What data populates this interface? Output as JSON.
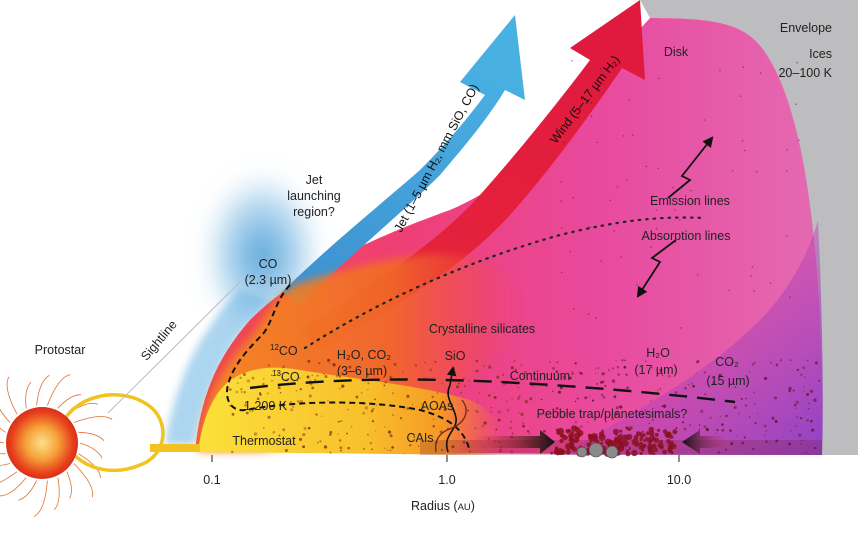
{
  "labels": {
    "envelope": "Envelope",
    "ices_1": "Ices",
    "ices_2": "20–100 K",
    "disk": "Disk",
    "jet_arrow": "Jet (1–5 µm H₂, mm SiO, CO)",
    "wind_arrow": "Wind (5–17 µm H₂)",
    "jet_launching_1": "Jet",
    "jet_launching_2": "launching",
    "jet_launching_3": "region?",
    "co_1": "CO",
    "co_2": "(2.3 µm)",
    "emission_lines": "Emission lines",
    "absorption_lines": "Absorption lines",
    "crystalline_silicates": "Crystalline silicates",
    "protostar": "Protostar",
    "sightline": "Sightline",
    "co12_sup": "12",
    "co12": "CO",
    "co13_sup": "13",
    "co13": "CO",
    "h2o_co2": "H₂O, CO₂",
    "h2o_co2_range": "(3–6 µm)",
    "sio": "SiO",
    "continuum": "Continuum",
    "h2o": "H₂O",
    "h2o_wl": "(17 µm)",
    "co2": "CO₂",
    "co2_wl": "(15 µm)",
    "t1200": "1,200 K",
    "aoas": "AOAs",
    "pebble_trap": "Pebble trap/planetesimals?",
    "thermostat": "Thermostat",
    "cais": "CAIs"
  },
  "axis": {
    "title": "Radius (",
    "unit": "AU",
    "close": ")",
    "ticks": [
      "0.1",
      "1.0",
      "10.0"
    ]
  },
  "colors": {
    "envelope": "#bdbdbf",
    "disk_outer": "#e0469a",
    "disk_purple": "#9b48c8",
    "warm": "#f03a3a",
    "hot": "#f5781e",
    "thermostat": "#f8d52a",
    "jet": "#3a9ad3",
    "wind": "#e3203a",
    "star_core": "#f6a23a",
    "star_edge": "#e8401c"
  }
}
